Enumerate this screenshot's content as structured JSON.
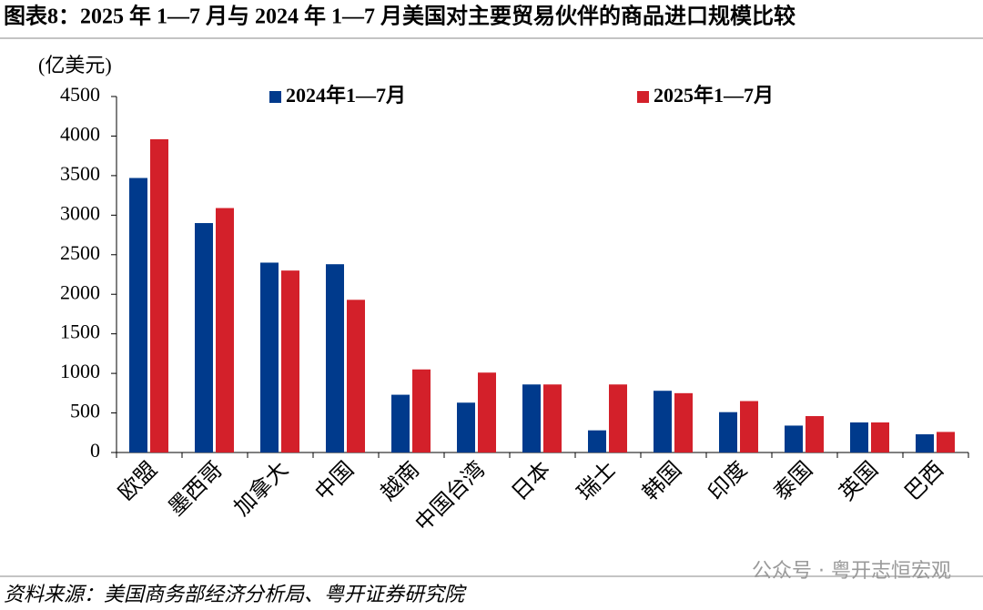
{
  "chart_data": {
    "type": "bar",
    "title": "图表8：2025 年 1—7 月与 2024 年 1—7 月美国对主要贸易伙伴的商品进口规模比较",
    "y_label": "(亿美元)",
    "categories": [
      "欧盟",
      "墨西哥",
      "加拿大",
      "中国",
      "越南",
      "中国台湾",
      "日本",
      "瑞士",
      "韩国",
      "印度",
      "泰国",
      "英国",
      "巴西"
    ],
    "series": [
      {
        "name": "2024年1—7月",
        "color": "#003a8c",
        "values": [
          3470,
          2900,
          2400,
          2380,
          730,
          630,
          860,
          280,
          780,
          510,
          340,
          380,
          230
        ]
      },
      {
        "name": "2025年1—7月",
        "color": "#d3202a",
        "values": [
          3960,
          3090,
          2300,
          1930,
          1050,
          1010,
          860,
          860,
          750,
          650,
          460,
          380,
          260
        ]
      }
    ],
    "ylim": [
      0,
      4500
    ],
    "yticks": [
      0,
      500,
      1000,
      1500,
      2000,
      2500,
      3000,
      3500,
      4000,
      4500
    ],
    "source": "资料来源：美国商务部经济分析局、粤开证券研究院",
    "watermark": "公众号 · 粤开志恒宏观"
  }
}
